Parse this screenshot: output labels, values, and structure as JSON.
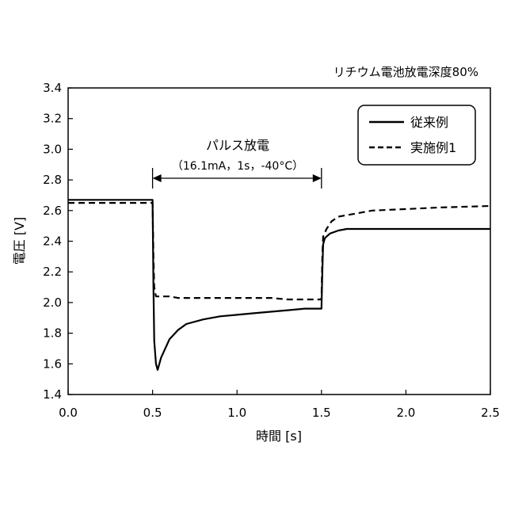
{
  "chart_data": {
    "type": "line",
    "title": "リチウム電池放電深度80%",
    "xlabel": "時間 [s]",
    "ylabel": "電圧 [V]",
    "xlim": [
      0.0,
      2.5
    ],
    "ylim": [
      1.4,
      3.4
    ],
    "xticks": [
      "0.0",
      "0.5",
      "1.0",
      "1.5",
      "2.0",
      "2.5"
    ],
    "yticks": [
      "1.4",
      "1.6",
      "1.8",
      "2.0",
      "2.2",
      "2.4",
      "2.6",
      "2.8",
      "3.0",
      "3.2",
      "3.4"
    ],
    "grid": false,
    "legend_position": "top-right",
    "annotation": {
      "title": "パルス放電",
      "detail": "（16.1mA，1s，-40°C）",
      "x_range": [
        0.5,
        1.5
      ]
    },
    "series": [
      {
        "name": "従来例",
        "style": "solid",
        "color": "#000000",
        "x": [
          0.0,
          0.5,
          0.505,
          0.51,
          0.52,
          0.53,
          0.55,
          0.6,
          0.65,
          0.7,
          0.8,
          0.9,
          1.0,
          1.1,
          1.2,
          1.3,
          1.4,
          1.5,
          1.505,
          1.51,
          1.52,
          1.55,
          1.6,
          1.65,
          1.7,
          2.0,
          2.5
        ],
        "y": [
          2.67,
          2.67,
          2.1,
          1.75,
          1.6,
          1.56,
          1.64,
          1.76,
          1.82,
          1.86,
          1.89,
          1.91,
          1.92,
          1.93,
          1.94,
          1.95,
          1.96,
          1.96,
          2.2,
          2.38,
          2.42,
          2.45,
          2.47,
          2.48,
          2.48,
          2.48,
          2.48
        ]
      },
      {
        "name": "実施例1",
        "style": "dashed",
        "color": "#000000",
        "x": [
          0.0,
          0.5,
          0.505,
          0.51,
          0.52,
          0.6,
          0.65,
          0.7,
          0.8,
          1.0,
          1.2,
          1.3,
          1.5,
          1.505,
          1.51,
          1.53,
          1.56,
          1.6,
          1.7,
          1.8,
          2.0,
          2.2,
          2.5
        ],
        "y": [
          2.65,
          2.65,
          2.3,
          2.1,
          2.04,
          2.04,
          2.03,
          2.03,
          2.03,
          2.03,
          2.03,
          2.02,
          2.02,
          2.3,
          2.43,
          2.48,
          2.53,
          2.56,
          2.58,
          2.6,
          2.61,
          2.62,
          2.63
        ]
      }
    ]
  }
}
